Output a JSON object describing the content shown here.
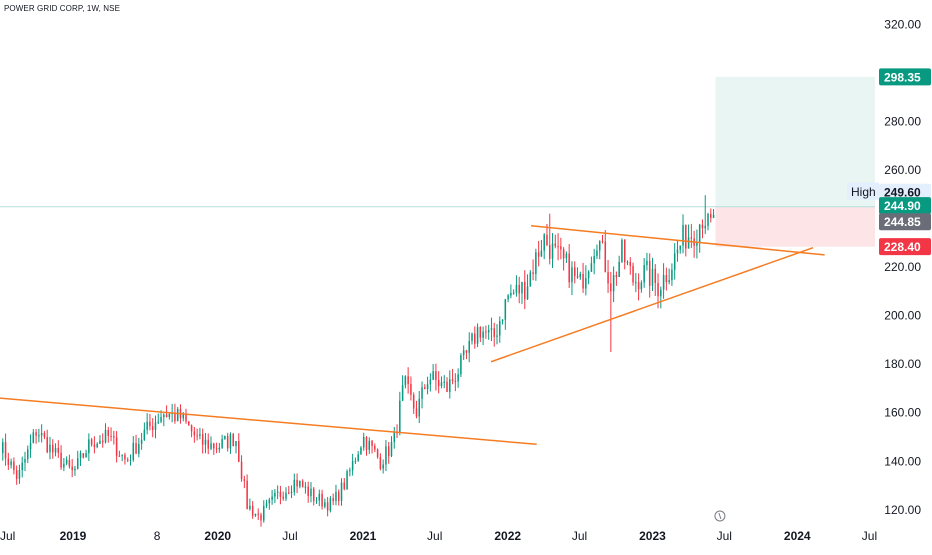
{
  "header": {
    "symbol_label": "POWER GRID CORP, 1W, NSE"
  },
  "chart_data": {
    "type": "candlestick",
    "title": "POWER GRID CORP, 1W, NSE",
    "ylim": [
      115,
      330
    ],
    "y_ticks": [
      120,
      140,
      160,
      180,
      200,
      220,
      240,
      260,
      280,
      300,
      320
    ],
    "y_tick_labels": [
      "120.00",
      "140.00",
      "160.00",
      "180.00",
      "200.00",
      "220.00",
      "",
      "260.00",
      "280.00",
      "",
      "320.00"
    ],
    "x_range": [
      "2018-07-01",
      "2024-07-15"
    ],
    "x_ticks": [
      {
        "date": "2018-07-01",
        "label": "Jul",
        "bold": false
      },
      {
        "date": "2019-01-01",
        "label": "2019",
        "bold": true
      },
      {
        "date": "2019-08-01",
        "label": "8",
        "bold": false
      },
      {
        "date": "2020-01-01",
        "label": "2020",
        "bold": true
      },
      {
        "date": "2020-07-01",
        "label": "Jul",
        "bold": false
      },
      {
        "date": "2021-01-01",
        "label": "2021",
        "bold": true
      },
      {
        "date": "2021-07-01",
        "label": "Jul",
        "bold": false
      },
      {
        "date": "2022-01-01",
        "label": "2022",
        "bold": true
      },
      {
        "date": "2022-07-01",
        "label": "Jul",
        "bold": false
      },
      {
        "date": "2023-01-01",
        "label": "2023",
        "bold": true
      },
      {
        "date": "2023-07-01",
        "label": "Jul",
        "bold": false
      },
      {
        "date": "2024-01-01",
        "label": "2024",
        "bold": true
      },
      {
        "date": "2024-07-01",
        "label": "Jul",
        "bold": false
      }
    ],
    "price_anchors": [
      [
        "2018-07-01",
        147
      ],
      [
        "2018-08-15",
        133
      ],
      [
        "2018-10-01",
        153
      ],
      [
        "2018-11-15",
        143
      ],
      [
        "2019-01-01",
        135
      ],
      [
        "2019-02-15",
        148
      ],
      [
        "2019-04-01",
        150
      ],
      [
        "2019-05-15",
        140
      ],
      [
        "2019-07-01",
        152
      ],
      [
        "2019-08-15",
        160
      ],
      [
        "2019-10-01",
        158
      ],
      [
        "2019-11-15",
        148
      ],
      [
        "2020-01-01",
        146
      ],
      [
        "2020-02-15",
        150
      ],
      [
        "2020-03-15",
        122
      ],
      [
        "2020-04-15",
        117
      ],
      [
        "2020-06-01",
        126
      ],
      [
        "2020-07-15",
        132
      ],
      [
        "2020-09-01",
        125
      ],
      [
        "2020-10-15",
        122
      ],
      [
        "2020-11-20",
        132
      ],
      [
        "2021-01-01",
        150
      ],
      [
        "2021-02-15",
        140
      ],
      [
        "2021-03-20",
        148
      ],
      [
        "2021-04-15",
        172
      ],
      [
        "2021-05-15",
        160
      ],
      [
        "2021-06-15",
        175
      ],
      [
        "2021-08-01",
        170
      ],
      [
        "2021-09-15",
        182
      ],
      [
        "2021-10-20",
        195
      ],
      [
        "2021-11-25",
        190
      ],
      [
        "2022-01-01",
        208
      ],
      [
        "2022-02-15",
        212
      ],
      [
        "2022-04-01",
        232
      ],
      [
        "2022-05-01",
        225
      ],
      [
        "2022-06-01",
        220
      ],
      [
        "2022-07-01",
        212
      ],
      [
        "2022-08-15",
        233
      ],
      [
        "2022-09-20",
        212
      ],
      [
        "2022-10-15",
        226
      ],
      [
        "2022-11-15",
        214
      ],
      [
        "2022-12-15",
        218
      ],
      [
        "2023-01-15",
        212
      ],
      [
        "2023-02-15",
        220
      ],
      [
        "2023-03-20",
        232
      ],
      [
        "2023-04-20",
        235
      ],
      [
        "2023-05-10",
        242
      ],
      [
        "2023-05-25",
        235
      ],
      [
        "2023-06-09",
        244.85
      ]
    ],
    "wick_extremes": [
      {
        "date": "2022-04-15",
        "high": 242
      },
      {
        "date": "2022-09-16",
        "low": 185
      },
      {
        "date": "2023-05-12",
        "high": 249.6
      }
    ],
    "trendlines": [
      {
        "name": "upper-2019",
        "from": [
          "2018-07-01",
          166
        ],
        "to": [
          "2022-03-15",
          147
        ]
      },
      {
        "name": "upper-2022",
        "from": [
          "2022-03-01",
          237
        ],
        "to": [
          "2024-03-10",
          225
        ]
      },
      {
        "name": "lower-2021",
        "from": [
          "2021-11-20",
          181
        ],
        "to": [
          "2024-02-10",
          228
        ]
      }
    ],
    "position": {
      "start": "2023-06-09",
      "end": "2024-07-15",
      "entry": 244.9,
      "target": 298.35,
      "stop": 228.4
    },
    "price_labels": [
      {
        "value": 298.35,
        "text": "298.35",
        "color": "#089981"
      },
      {
        "value": 249.6,
        "text": "249.60",
        "color": "#e3effd",
        "prefix": "High"
      },
      {
        "value": 244.9,
        "text": "244.90",
        "color": "#089981"
      },
      {
        "value": 244.85,
        "text": "244.85",
        "color": "#6a6d78"
      },
      {
        "value": 228.4,
        "text": "228.40",
        "color": "#f23645"
      }
    ],
    "colors": {
      "up": "#089981",
      "down": "#f23645",
      "trendline": "#f57c22",
      "target_zone": "#e8f5f3",
      "stop_zone": "#fde4e6",
      "current_line": "#b2dfdb"
    }
  }
}
